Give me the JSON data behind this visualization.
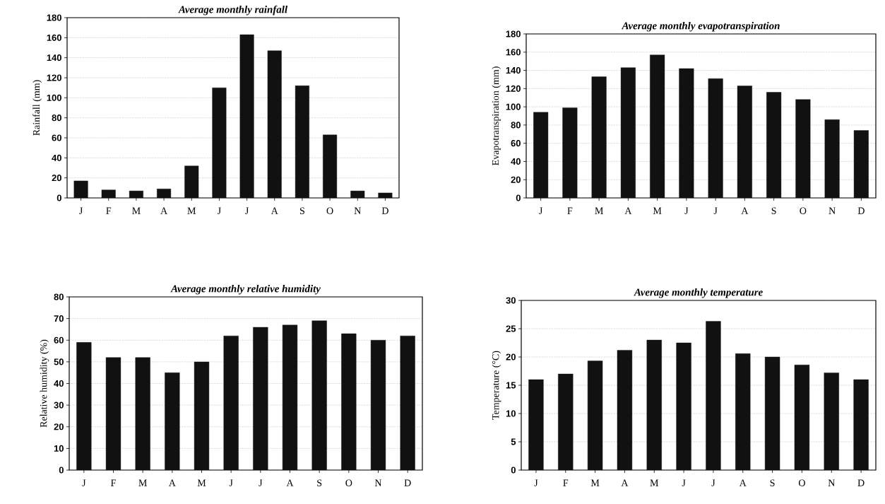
{
  "chart_data": [
    {
      "type": "bar",
      "title": "Average monthly rainfall",
      "ylabel": "Rainfall (mm)",
      "categories": [
        "J",
        "F",
        "M",
        "A",
        "M",
        "J",
        "J",
        "A",
        "S",
        "O",
        "N",
        "D"
      ],
      "values": [
        17,
        8,
        7,
        9,
        32,
        110,
        163,
        147,
        112,
        63,
        7,
        5
      ],
      "color": "#111111",
      "ylim": [
        0,
        180
      ],
      "yticks": [
        0,
        20,
        40,
        60,
        80,
        100,
        120,
        140,
        160,
        180
      ],
      "grid": "y"
    },
    {
      "type": "bar",
      "title": "Average monthly evapotranspiration",
      "ylabel": "Evapotranspiration (mm)",
      "categories": [
        "J",
        "F",
        "M",
        "A",
        "M",
        "J",
        "J",
        "A",
        "S",
        "O",
        "N",
        "D"
      ],
      "values": [
        94,
        99,
        133,
        143,
        157,
        142,
        131,
        123,
        116,
        108,
        86,
        74
      ],
      "color": "#111111",
      "ylim": [
        0,
        180
      ],
      "yticks": [
        0,
        20,
        40,
        60,
        80,
        100,
        120,
        140,
        160,
        180
      ],
      "grid": "y"
    },
    {
      "type": "bar",
      "title": "Average monthly relative humidity",
      "ylabel": "Relative humidity (%)",
      "categories": [
        "J",
        "F",
        "M",
        "A",
        "M",
        "J",
        "J",
        "A",
        "S",
        "O",
        "N",
        "D"
      ],
      "values": [
        59,
        52,
        52,
        45,
        50,
        62,
        66,
        67,
        69,
        63,
        60,
        62
      ],
      "color": "#111111",
      "ylim": [
        0,
        80
      ],
      "yticks": [
        0,
        10,
        20,
        30,
        40,
        50,
        60,
        70,
        80
      ],
      "grid": "y"
    },
    {
      "type": "bar",
      "title": "Average monthly temperature",
      "ylabel": "Temperature (°C)",
      "categories": [
        "J",
        "F",
        "M",
        "A",
        "M",
        "J",
        "J",
        "A",
        "S",
        "O",
        "N",
        "D"
      ],
      "values": [
        16,
        17,
        19.3,
        21.2,
        23,
        22.5,
        26.3,
        20.6,
        20,
        18.6,
        17.2,
        16
      ],
      "color": "#111111",
      "ylim": [
        0,
        30
      ],
      "yticks": [
        0,
        5,
        10,
        15,
        20,
        25,
        30
      ],
      "grid": "y"
    }
  ]
}
